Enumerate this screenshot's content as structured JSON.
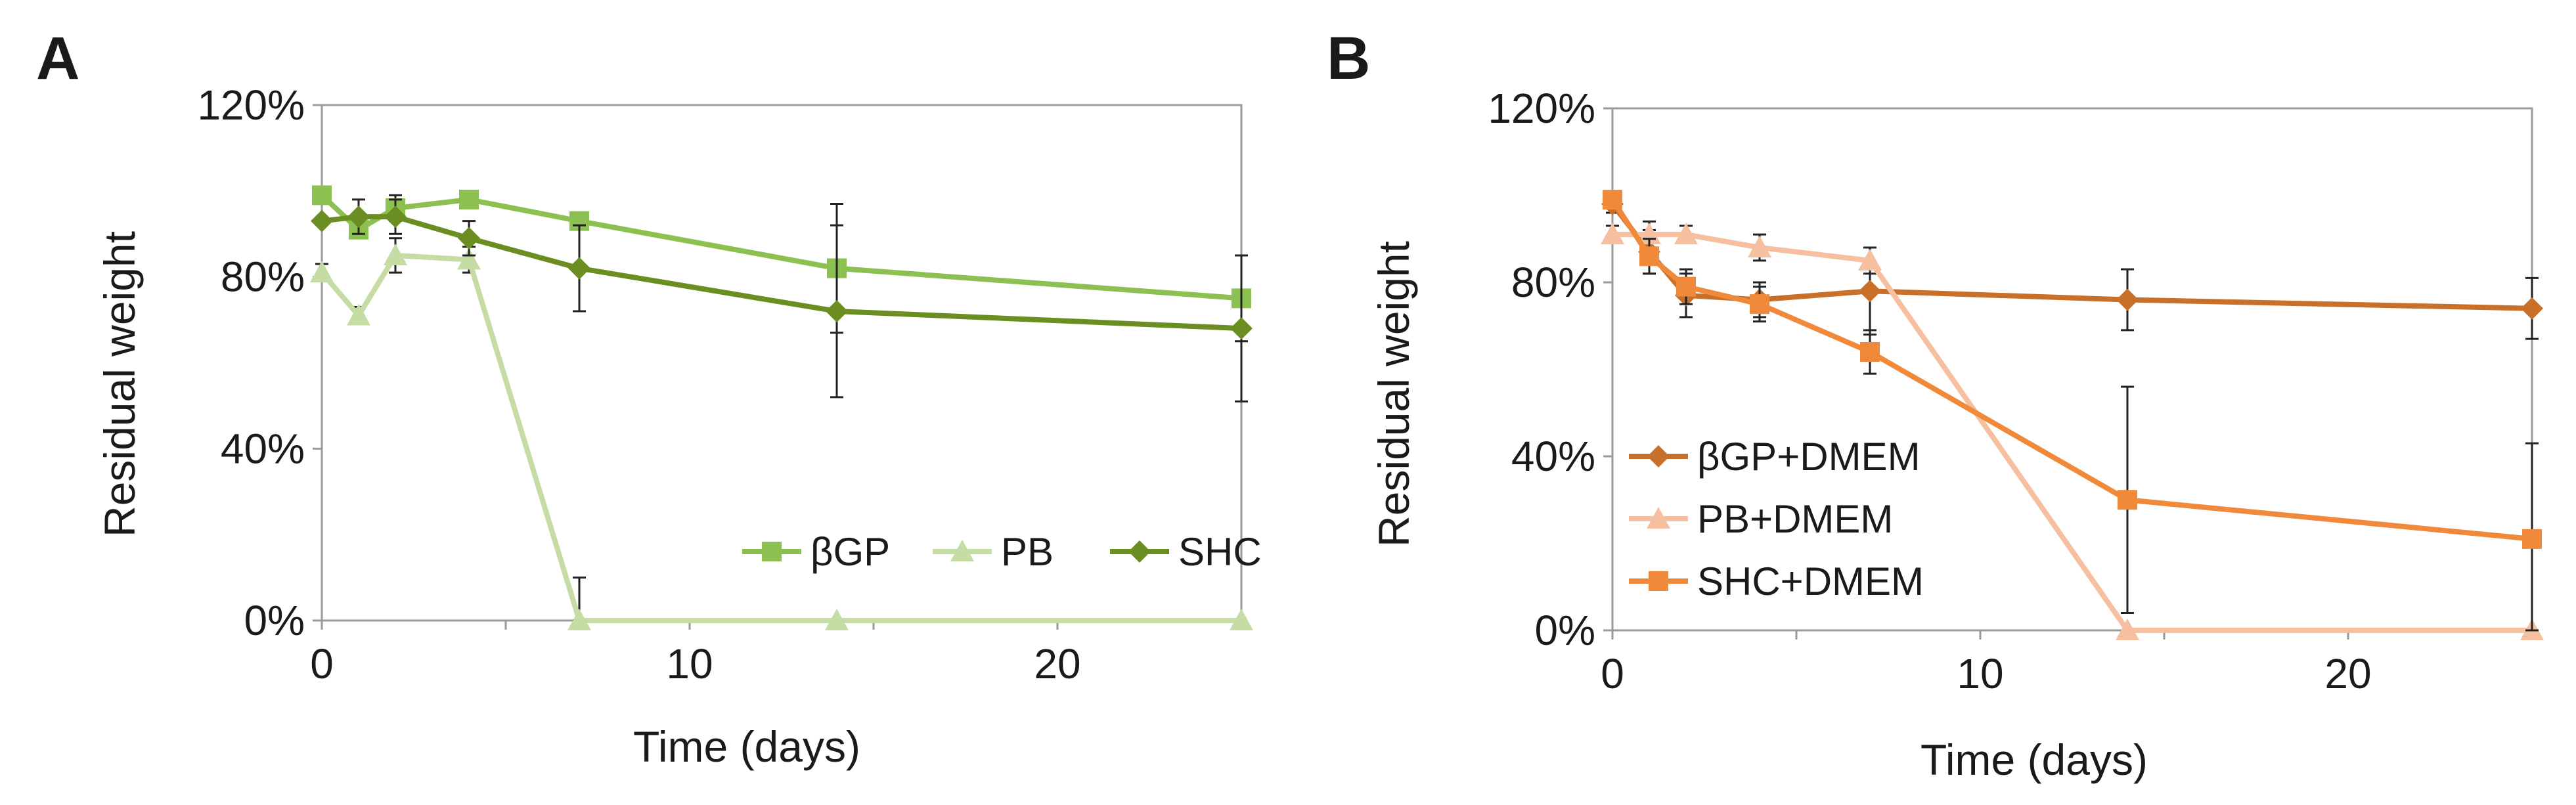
{
  "figure": {
    "panels": [
      {
        "id": "A",
        "label": "A"
      },
      {
        "id": "B",
        "label": "B"
      }
    ]
  },
  "chart_data": [
    {
      "type": "line",
      "panel": "A",
      "xlabel": "Time (days)",
      "ylabel": "Residual weight",
      "xlim": [
        0,
        25
      ],
      "ylim": [
        0,
        120
      ],
      "xticks": [
        0,
        10,
        20
      ],
      "yticks": [
        0,
        40,
        80,
        120
      ],
      "ytick_labels": [
        "0%",
        "40%",
        "80%",
        "120%"
      ],
      "legend_position": "bottom-right",
      "grid": false,
      "series": [
        {
          "name": "βGP",
          "color": "#8cc152",
          "marker": "square",
          "x": [
            0,
            1,
            2,
            4,
            7,
            14,
            25
          ],
          "values": [
            99,
            91,
            96,
            98,
            93,
            82,
            75
          ],
          "errors": [
            0,
            2,
            3,
            1,
            2,
            15,
            10
          ]
        },
        {
          "name": "PB",
          "color": "#c5dca4",
          "marker": "triangle",
          "x": [
            0,
            1,
            2,
            4,
            7,
            14,
            25
          ],
          "values": [
            81,
            71,
            85,
            84,
            0,
            0,
            0
          ],
          "errors": [
            2,
            2,
            4,
            3,
            10,
            0,
            0
          ]
        },
        {
          "name": "SHC",
          "color": "#6b8e23",
          "marker": "diamond",
          "x": [
            0,
            1,
            2,
            4,
            7,
            14,
            25
          ],
          "values": [
            93,
            94,
            94,
            89,
            82,
            72,
            68
          ],
          "errors": [
            0,
            4,
            4,
            4,
            10,
            20,
            17
          ]
        }
      ]
    },
    {
      "type": "line",
      "panel": "B",
      "xlabel": "Time (days)",
      "ylabel": "Residual weight",
      "xlim": [
        0,
        25
      ],
      "ylim": [
        0,
        120
      ],
      "xticks": [
        0,
        10,
        20
      ],
      "yticks": [
        0,
        40,
        80,
        120
      ],
      "ytick_labels": [
        "0%",
        "40%",
        "80%",
        "120%"
      ],
      "legend_position": "bottom-left",
      "grid": false,
      "series": [
        {
          "name": "βGP+DMEM",
          "color": "#c8702a",
          "marker": "diamond",
          "x": [
            0,
            1,
            2,
            4,
            7,
            14,
            25
          ],
          "values": [
            98,
            87,
            77,
            76,
            78,
            76,
            74
          ],
          "errors": [
            2,
            5,
            5,
            4,
            10,
            7,
            7
          ]
        },
        {
          "name": "PB+DMEM",
          "color": "#f5bfa0",
          "marker": "triangle",
          "x": [
            0,
            1,
            2,
            4,
            7,
            14,
            25
          ],
          "values": [
            91,
            91,
            91,
            88,
            85,
            0,
            0
          ],
          "errors": [
            2,
            3,
            2,
            3,
            3,
            0,
            0
          ]
        },
        {
          "name": "SHC+DMEM",
          "color": "#f0893a",
          "marker": "square",
          "x": [
            0,
            1,
            2,
            4,
            7,
            14,
            25
          ],
          "values": [
            99,
            86,
            79,
            75,
            64,
            30,
            21
          ],
          "errors": [
            2,
            4,
            4,
            4,
            5,
            26,
            22
          ]
        }
      ]
    }
  ]
}
